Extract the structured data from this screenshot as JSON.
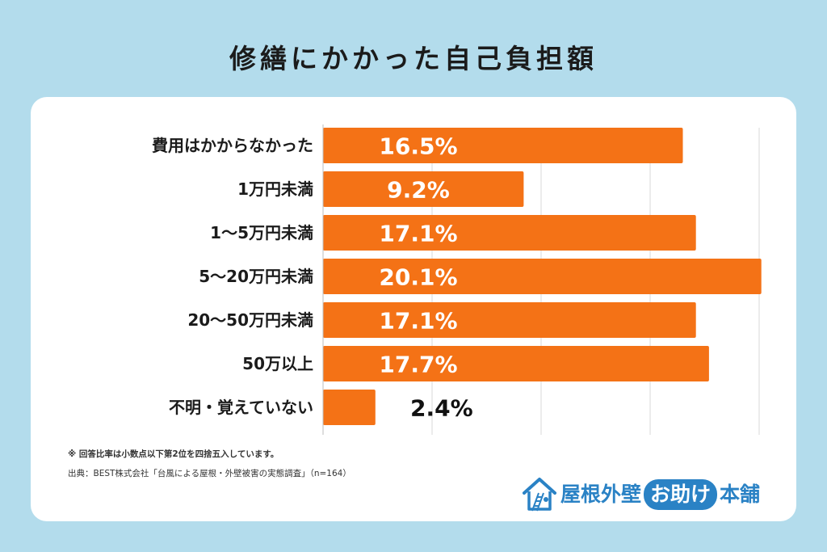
{
  "title": "修繕にかかった自己負担額",
  "chart_data": {
    "type": "bar",
    "orientation": "horizontal",
    "categories": [
      "費用はかからなかった",
      "1万円未満",
      "1〜5万円未満",
      "5〜20万円未満",
      "20〜50万円未満",
      "50万以上",
      "不明・覚えていない"
    ],
    "values": [
      16.5,
      9.2,
      17.1,
      20.1,
      17.1,
      17.7,
      2.4
    ],
    "data_labels": [
      "16.5%",
      "9.2%",
      "17.1%",
      "20.1%",
      "17.1%",
      "17.7%",
      "2.4%"
    ],
    "xlim": [
      0,
      20
    ],
    "grid": true,
    "bar_color": "#f47216"
  },
  "notes": {
    "rounding": "※ 回答比率は小数点以下第2位を四捨五入しています。",
    "source": "出典：BEST株式会社「台風による屋根・外壁被害の実態調査」（n=164）"
  },
  "logo": {
    "name_part1": "屋根外壁",
    "name_highlight": "お助け",
    "name_part2": "本舗",
    "color": "#2a82c5",
    "icon": "house-ladder-icon"
  }
}
